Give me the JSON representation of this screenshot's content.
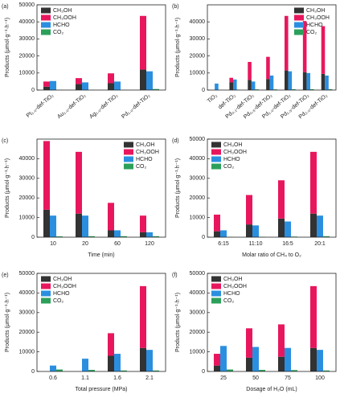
{
  "chart_data": [
    {
      "type": "bar",
      "panel_label": "(a)",
      "ylabel": "Products (μmol·g⁻¹·h⁻¹)",
      "legend": "upper left",
      "xtick_rotation": 40,
      "categories": [
        "Pt₁.₀-def-TiO₂",
        "Au₁.₀-def-TiO₂",
        "Ag₁.₀-def-TiO₂",
        "Pd₁.₀-def-TiO₂"
      ],
      "series": [
        {
          "name": "CH₃OH",
          "color": "#333333",
          "values": [
            2000,
            3500,
            4000,
            12000
          ]
        },
        {
          "name": "CH₃OOH",
          "color": "#e8175d",
          "values": [
            3000,
            3500,
            5800,
            31500
          ]
        },
        {
          "name": "HCHO",
          "color": "#2b8fe0",
          "values": [
            5300,
            4500,
            5000,
            11000
          ]
        },
        {
          "name": "CO₂",
          "color": "#2ca05a",
          "values": [
            100,
            100,
            100,
            600
          ]
        }
      ],
      "ylim": [
        0,
        50000
      ],
      "yticks": [
        0,
        10000,
        20000,
        30000,
        40000,
        50000
      ]
    },
    {
      "type": "bar",
      "panel_label": "(b)",
      "ylabel": "Products (μmol·g⁻¹·h⁻¹)",
      "legend": "upper right",
      "xtick_rotation": 40,
      "categories": [
        "TiO₂",
        "def-TiO₂",
        "Pd₀.₁-def-TiO₂",
        "Pd₀.₅-def-TiO₂",
        "Pd₁.₀-def-TiO₂",
        "Pd₁.₅-def-TiO₂",
        "Pd₂.₀-def-TiO₂"
      ],
      "series": [
        {
          "name": "CH₃OH",
          "color": "#333333",
          "values": [
            0,
            4500,
            6000,
            6500,
            11500,
            10500,
            9500
          ]
        },
        {
          "name": "CH₃OOH",
          "color": "#e8175d",
          "values": [
            0,
            2700,
            10500,
            13000,
            32000,
            30000,
            28000
          ]
        },
        {
          "name": "HCHO",
          "color": "#2b8fe0",
          "values": [
            3800,
            6200,
            5000,
            8500,
            11000,
            10000,
            8500
          ]
        },
        {
          "name": "CO₂",
          "color": "#2ca05a",
          "values": [
            0,
            200,
            400,
            400,
            500,
            500,
            500
          ]
        }
      ],
      "ylim": [
        0,
        50000
      ],
      "yticks": [
        0,
        10000,
        20000,
        30000,
        40000
      ]
    },
    {
      "type": "bar",
      "panel_label": "(c)",
      "ylabel": "Products (μmol·g⁻¹·h⁻¹)",
      "xlabel": "Time (min)",
      "legend": "upper right",
      "categories": [
        "10",
        "20",
        "60",
        "120"
      ],
      "series": [
        {
          "name": "CH₃OH",
          "color": "#333333",
          "values": [
            14000,
            12000,
            3500,
            2500
          ]
        },
        {
          "name": "CH₃OOH",
          "color": "#e8175d",
          "values": [
            35000,
            31500,
            14000,
            8500
          ]
        },
        {
          "name": "HCHO",
          "color": "#2b8fe0",
          "values": [
            11000,
            11000,
            3500,
            2500
          ]
        },
        {
          "name": "CO₂",
          "color": "#2ca05a",
          "values": [
            400,
            500,
            500,
            500
          ]
        }
      ],
      "ylim": [
        0,
        50000
      ],
      "yticks": [
        0,
        10000,
        20000,
        30000,
        40000
      ]
    },
    {
      "type": "bar",
      "panel_label": "(d)",
      "ylabel": "Products (μmol·g⁻¹·h⁻¹)",
      "xlabel": "Molar ratio of CH₄ to O₂",
      "legend": "upper left",
      "categories": [
        "6:15",
        "11:10",
        "16:5",
        "20:1"
      ],
      "series": [
        {
          "name": "CH₃OH",
          "color": "#333333",
          "values": [
            3000,
            6500,
            9500,
            12000
          ]
        },
        {
          "name": "CH₃OOH",
          "color": "#e8175d",
          "values": [
            8500,
            15000,
            19500,
            31500
          ]
        },
        {
          "name": "HCHO",
          "color": "#2b8fe0",
          "values": [
            3500,
            6000,
            8000,
            11000
          ]
        },
        {
          "name": "CO₂",
          "color": "#2ca05a",
          "values": [
            100,
            200,
            300,
            500
          ]
        }
      ],
      "ylim": [
        0,
        50000
      ],
      "yticks": [
        0,
        10000,
        20000,
        30000,
        40000,
        50000
      ]
    },
    {
      "type": "bar",
      "panel_label": "(e)",
      "ylabel": "Products (μmol·g⁻¹·h⁻¹)",
      "xlabel": "Total pressure (MPa)",
      "legend": "upper left",
      "categories": [
        "0.6",
        "1.1",
        "1.6",
        "2.1"
      ],
      "series": [
        {
          "name": "CH₃OH",
          "color": "#333333",
          "values": [
            0,
            0,
            8000,
            12000
          ]
        },
        {
          "name": "CH₃OOH",
          "color": "#e8175d",
          "values": [
            0,
            0,
            11500,
            31500
          ]
        },
        {
          "name": "HCHO",
          "color": "#2b8fe0",
          "values": [
            3000,
            6500,
            9000,
            11000
          ]
        },
        {
          "name": "CO₂",
          "color": "#2ca05a",
          "values": [
            1000,
            800,
            500,
            500
          ]
        }
      ],
      "ylim": [
        0,
        50000
      ],
      "yticks": [
        0,
        10000,
        20000,
        30000,
        40000,
        50000
      ]
    },
    {
      "type": "bar",
      "panel_label": "(f)",
      "ylabel": "Products (μmol·g⁻¹·h⁻¹)",
      "xlabel": "Dosage of H₂O (mL)",
      "legend": "upper left",
      "categories": [
        "25",
        "50",
        "75",
        "100"
      ],
      "series": [
        {
          "name": "CH₃OH",
          "color": "#333333",
          "values": [
            3000,
            7000,
            7500,
            12000
          ]
        },
        {
          "name": "CH₃OOH",
          "color": "#e8175d",
          "values": [
            6000,
            15000,
            16500,
            31500
          ]
        },
        {
          "name": "HCHO",
          "color": "#2b8fe0",
          "values": [
            13000,
            12500,
            12000,
            11000
          ]
        },
        {
          "name": "CO₂",
          "color": "#2ca05a",
          "values": [
            1000,
            800,
            700,
            500
          ]
        }
      ],
      "ylim": [
        0,
        50000
      ],
      "yticks": [
        0,
        10000,
        20000,
        30000,
        40000,
        50000
      ]
    }
  ]
}
